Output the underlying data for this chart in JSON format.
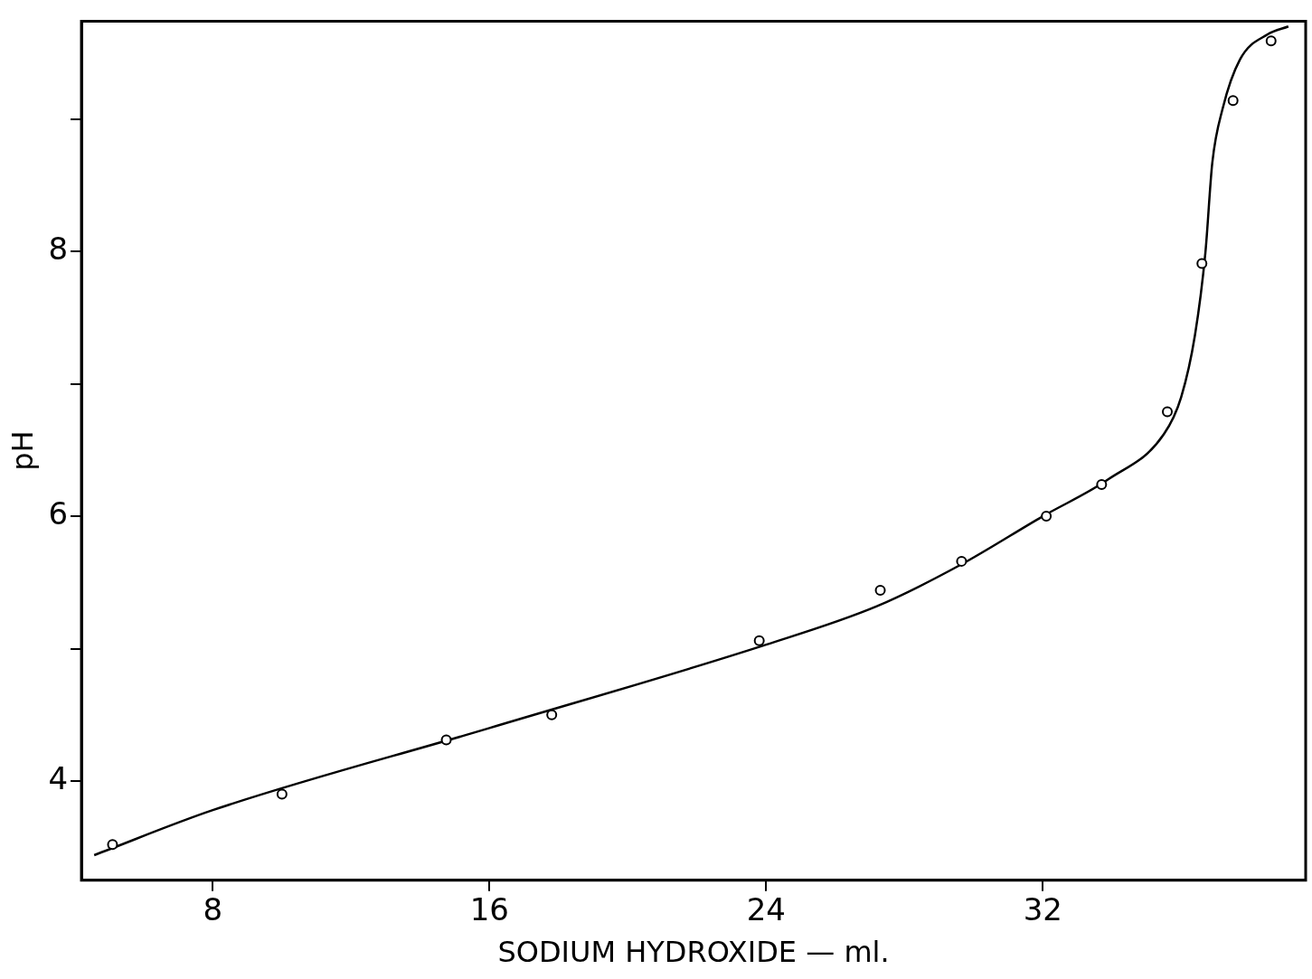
{
  "chart_data": {
    "type": "scatter",
    "xlabel": "SODIUM HYDROXIDE — ml.",
    "ylabel": "pH",
    "xlim": [
      4.2,
      39.6
    ],
    "xticks": [
      8,
      16,
      24,
      32
    ],
    "ylim": [
      3.25,
      9.74
    ],
    "yticks": [
      4,
      {
        "value": 5,
        "label": null
      },
      6,
      {
        "value": 7,
        "label": null
      },
      8,
      {
        "value": 9,
        "label": null
      }
    ],
    "grid": false,
    "legend": false,
    "series": [
      {
        "type": "scatter",
        "color": "#000000",
        "marker": "circle",
        "x": [
          5.1,
          10,
          14.75,
          17.8,
          23.8,
          27.3,
          29.65,
          32.1,
          33.7,
          35.6,
          36.6,
          37.5,
          38.6
        ],
        "values": [
          3.52,
          3.9,
          4.31,
          4.5,
          5.06,
          5.44,
          5.66,
          6.0,
          6.24,
          6.79,
          7.91,
          9.14,
          9.59
        ]
      },
      {
        "type": "line",
        "color": "#000000",
        "marker": "none",
        "line_style": "solid",
        "x": [
          4.57,
          8,
          16,
          24,
          27.2,
          29.6,
          32,
          33.9,
          35.5,
          36,
          36.4,
          36.7,
          36.9,
          37.2,
          37.7,
          38.5,
          39.1
        ],
        "values": [
          3.44,
          3.78,
          4.4,
          5.03,
          5.32,
          5.63,
          6.0,
          6.28,
          6.62,
          6.9,
          7.37,
          7.99,
          8.67,
          9.08,
          9.45,
          9.64,
          9.7
        ]
      }
    ]
  }
}
